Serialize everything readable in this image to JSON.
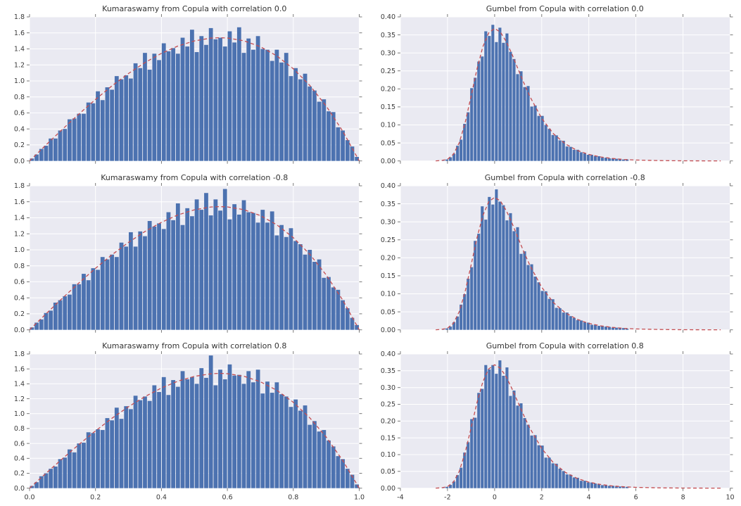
{
  "figure": {
    "bg": "#ffffff",
    "axes_bg": "#eaeaf2",
    "grid_color": "#ffffff",
    "bar_color": "#4c72b0",
    "curve_color": "#c44e52",
    "text_color": "#3a3a3a",
    "tick_color": "#6a6a6a"
  },
  "curves": {
    "kumaraswamy": [
      [
        0,
        0
      ],
      [
        0.05,
        0.2
      ],
      [
        0.1,
        0.396
      ],
      [
        0.15,
        0.587
      ],
      [
        0.2,
        0.768
      ],
      [
        0.25,
        0.938
      ],
      [
        0.3,
        1.092
      ],
      [
        0.35,
        1.229
      ],
      [
        0.4,
        1.344
      ],
      [
        0.45,
        1.436
      ],
      [
        0.5,
        1.5
      ],
      [
        0.55,
        1.535
      ],
      [
        0.577,
        1.54
      ],
      [
        0.6,
        1.536
      ],
      [
        0.65,
        1.502
      ],
      [
        0.7,
        1.428
      ],
      [
        0.75,
        1.313
      ],
      [
        0.8,
        1.152
      ],
      [
        0.85,
        0.944
      ],
      [
        0.9,
        0.684
      ],
      [
        0.95,
        0.371
      ],
      [
        1,
        0
      ]
    ],
    "gumbel": [
      [
        -2.5,
        0.0002
      ],
      [
        -2.25,
        0.0013
      ],
      [
        -2,
        0.0046
      ],
      [
        -1.75,
        0.0182
      ],
      [
        -1.5,
        0.0507
      ],
      [
        -1.25,
        0.1064
      ],
      [
        -1,
        0.1794
      ],
      [
        -0.75,
        0.2549
      ],
      [
        -0.5,
        0.317
      ],
      [
        -0.25,
        0.3556
      ],
      [
        0,
        0.3679
      ],
      [
        0.25,
        0.3575
      ],
      [
        0.5,
        0.3307
      ],
      [
        0.75,
        0.2945
      ],
      [
        1,
        0.2546
      ],
      [
        1.25,
        0.2154
      ],
      [
        1.5,
        0.1785
      ],
      [
        2,
        0.1182
      ],
      [
        2.5,
        0.0756
      ],
      [
        3,
        0.0474
      ],
      [
        3.5,
        0.0293
      ],
      [
        4,
        0.018
      ],
      [
        4.5,
        0.011
      ],
      [
        5,
        0.0067
      ],
      [
        5.5,
        0.0041
      ],
      [
        6,
        0.0025
      ],
      [
        7,
        0.0009
      ],
      [
        8,
        0.0003
      ],
      [
        9,
        0.0001
      ],
      [
        9.6,
        0.0001
      ]
    ]
  },
  "chart_data": [
    {
      "type": "bar",
      "title": "Kumaraswamy from Copula with correlation 0.0",
      "xlim": [
        0.0,
        1.0
      ],
      "ylim": [
        0.0,
        1.8
      ],
      "xticks": [
        0.0,
        0.2,
        0.4,
        0.6,
        0.8,
        1.0
      ],
      "yticks": [
        0.0,
        0.2,
        0.4,
        0.6,
        0.8,
        1.0,
        1.2,
        1.4,
        1.6,
        1.8
      ],
      "ytick_labels": [
        "0.0",
        "0.2",
        "0.4",
        "0.6",
        "0.8",
        "1.0",
        "1.2",
        "1.4",
        "1.6",
        "1.8"
      ],
      "show_x_labels": false,
      "bins": {
        "start": 0.0,
        "width": 0.0142857
      },
      "heights": [
        0.03,
        0.08,
        0.15,
        0.19,
        0.28,
        0.28,
        0.38,
        0.4,
        0.52,
        0.53,
        0.59,
        0.59,
        0.73,
        0.72,
        0.87,
        0.76,
        0.92,
        0.89,
        1.06,
        1.02,
        1.07,
        1.03,
        1.22,
        1.16,
        1.35,
        1.14,
        1.34,
        1.26,
        1.47,
        1.37,
        1.41,
        1.34,
        1.54,
        1.43,
        1.64,
        1.36,
        1.56,
        1.45,
        1.66,
        1.52,
        1.54,
        1.43,
        1.62,
        1.48,
        1.67,
        1.35,
        1.53,
        1.39,
        1.56,
        1.4,
        1.39,
        1.25,
        1.39,
        1.23,
        1.35,
        1.06,
        1.16,
        1.02,
        1.09,
        0.93,
        0.88,
        0.74,
        0.77,
        0.62,
        0.61,
        0.42,
        0.38,
        0.26,
        0.18,
        0.05
      ],
      "curve": "kumaraswamy"
    },
    {
      "type": "bar",
      "title": "Gumbel from Copula with correlation 0.0",
      "xlim": [
        -4,
        10
      ],
      "ylim": [
        0.0,
        0.4
      ],
      "xticks": [
        -4,
        -2,
        0,
        2,
        4,
        6,
        8,
        10
      ],
      "yticks": [
        0.0,
        0.05,
        0.1,
        0.15,
        0.2,
        0.25,
        0.3,
        0.35,
        0.4
      ],
      "ytick_labels": [
        "0.00",
        "0.05",
        "0.10",
        "0.15",
        "0.20",
        "0.25",
        "0.30",
        "0.35",
        "0.40"
      ],
      "show_x_labels": false,
      "bins": {
        "start": -2.25,
        "width": 0.15
      },
      "heights": [
        0.001,
        0.004,
        0.01,
        0.02,
        0.042,
        0.059,
        0.103,
        0.135,
        0.202,
        0.231,
        0.276,
        0.29,
        0.36,
        0.347,
        0.378,
        0.33,
        0.37,
        0.328,
        0.354,
        0.303,
        0.283,
        0.241,
        0.249,
        0.205,
        0.208,
        0.151,
        0.154,
        0.125,
        0.125,
        0.1,
        0.089,
        0.072,
        0.071,
        0.057,
        0.056,
        0.04,
        0.039,
        0.031,
        0.031,
        0.024,
        0.021,
        0.017,
        0.017,
        0.013,
        0.013,
        0.009,
        0.009,
        0.007,
        0.007,
        0.006,
        0.005,
        0.004,
        0.004
      ],
      "curve": "gumbel"
    },
    {
      "type": "bar",
      "title": "Kumaraswamy from Copula with correlation -0.8",
      "xlim": [
        0.0,
        1.0
      ],
      "ylim": [
        0.0,
        1.8
      ],
      "xticks": [
        0.0,
        0.2,
        0.4,
        0.6,
        0.8,
        1.0
      ],
      "yticks": [
        0.0,
        0.2,
        0.4,
        0.6,
        0.8,
        1.0,
        1.2,
        1.4,
        1.6,
        1.8
      ],
      "ytick_labels": [
        "0.0",
        "0.2",
        "0.4",
        "0.6",
        "0.8",
        "1.0",
        "1.2",
        "1.4",
        "1.6",
        "1.8"
      ],
      "show_x_labels": false,
      "bins": {
        "start": 0.0,
        "width": 0.0142857
      },
      "heights": [
        0.03,
        0.09,
        0.13,
        0.21,
        0.24,
        0.34,
        0.37,
        0.42,
        0.44,
        0.57,
        0.57,
        0.7,
        0.62,
        0.77,
        0.75,
        0.91,
        0.88,
        0.94,
        0.91,
        1.09,
        1.04,
        1.22,
        1.04,
        1.23,
        1.17,
        1.36,
        1.29,
        1.33,
        1.26,
        1.47,
        1.37,
        1.58,
        1.31,
        1.52,
        1.42,
        1.63,
        1.5,
        1.71,
        1.43,
        1.63,
        1.49,
        1.76,
        1.38,
        1.57,
        1.44,
        1.62,
        1.47,
        1.46,
        1.34,
        1.5,
        1.34,
        1.48,
        1.18,
        1.31,
        1.16,
        1.27,
        1.11,
        1.07,
        0.94,
        1.0,
        0.85,
        0.88,
        0.65,
        0.66,
        0.53,
        0.5,
        0.37,
        0.27,
        0.15,
        0.06
      ],
      "curve": "kumaraswamy"
    },
    {
      "type": "bar",
      "title": "Gumbel from Copula with correlation -0.8",
      "xlim": [
        -4,
        10
      ],
      "ylim": [
        0.0,
        0.4
      ],
      "xticks": [
        -4,
        -2,
        0,
        2,
        4,
        6,
        8,
        10
      ],
      "yticks": [
        0.0,
        0.05,
        0.1,
        0.15,
        0.2,
        0.25,
        0.3,
        0.35,
        0.4
      ],
      "ytick_labels": [
        "0.00",
        "0.05",
        "0.10",
        "0.15",
        "0.20",
        "0.25",
        "0.30",
        "0.35",
        "0.40"
      ],
      "show_x_labels": false,
      "bins": {
        "start": -2.25,
        "width": 0.15
      },
      "heights": [
        0.001,
        0.004,
        0.009,
        0.021,
        0.037,
        0.07,
        0.099,
        0.142,
        0.174,
        0.247,
        0.267,
        0.343,
        0.306,
        0.369,
        0.348,
        0.39,
        0.356,
        0.346,
        0.304,
        0.324,
        0.274,
        0.285,
        0.211,
        0.218,
        0.18,
        0.182,
        0.148,
        0.132,
        0.108,
        0.107,
        0.086,
        0.085,
        0.061,
        0.06,
        0.048,
        0.048,
        0.038,
        0.033,
        0.027,
        0.026,
        0.021,
        0.02,
        0.014,
        0.014,
        0.011,
        0.011,
        0.009,
        0.008,
        0.006,
        0.006,
        0.005,
        0.005,
        0.003
      ],
      "curve": "gumbel"
    },
    {
      "type": "bar",
      "title": "Kumaraswamy from Copula with correlation 0.8",
      "xlim": [
        0.0,
        1.0
      ],
      "ylim": [
        0.0,
        1.8
      ],
      "xticks": [
        0.0,
        0.2,
        0.4,
        0.6,
        0.8,
        1.0
      ],
      "xtick_labels": [
        "0.0",
        "0.2",
        "0.4",
        "0.6",
        "0.8",
        "1.0"
      ],
      "yticks": [
        0.0,
        0.2,
        0.4,
        0.6,
        0.8,
        1.0,
        1.2,
        1.4,
        1.6,
        1.8
      ],
      "ytick_labels": [
        "0.0",
        "0.2",
        "0.4",
        "0.6",
        "0.8",
        "1.0",
        "1.2",
        "1.4",
        "1.6",
        "1.8"
      ],
      "show_x_labels": true,
      "bins": {
        "start": 0.0,
        "width": 0.0142857
      },
      "heights": [
        0.03,
        0.08,
        0.16,
        0.2,
        0.26,
        0.29,
        0.39,
        0.41,
        0.52,
        0.48,
        0.6,
        0.61,
        0.75,
        0.74,
        0.79,
        0.78,
        0.94,
        0.91,
        1.08,
        0.93,
        1.1,
        1.06,
        1.24,
        1.18,
        1.23,
        1.17,
        1.38,
        1.29,
        1.49,
        1.25,
        1.45,
        1.36,
        1.57,
        1.46,
        1.49,
        1.4,
        1.61,
        1.48,
        1.78,
        1.38,
        1.59,
        1.46,
        1.66,
        1.51,
        1.52,
        1.4,
        1.57,
        1.42,
        1.59,
        1.27,
        1.43,
        1.28,
        1.42,
        1.26,
        1.23,
        1.09,
        1.19,
        1.04,
        1.11,
        0.85,
        0.9,
        0.76,
        0.78,
        0.64,
        0.56,
        0.43,
        0.39,
        0.26,
        0.18,
        0.05
      ],
      "curve": "kumaraswamy"
    },
    {
      "type": "bar",
      "title": "Gumbel from Copula with correlation 0.8",
      "xlim": [
        -4,
        10
      ],
      "ylim": [
        0.0,
        0.4
      ],
      "xticks": [
        -4,
        -2,
        0,
        2,
        4,
        6,
        8,
        10
      ],
      "xtick_labels": [
        "-4",
        "-2",
        "0",
        "2",
        "4",
        "6",
        "8",
        "10"
      ],
      "yticks": [
        0.0,
        0.05,
        0.1,
        0.15,
        0.2,
        0.25,
        0.3,
        0.35,
        0.4
      ],
      "ytick_labels": [
        "0.00",
        "0.05",
        "0.10",
        "0.15",
        "0.20",
        "0.25",
        "0.30",
        "0.35",
        "0.40"
      ],
      "show_x_labels": true,
      "bins": {
        "start": -2.25,
        "width": 0.15
      },
      "heights": [
        0.001,
        0.004,
        0.01,
        0.02,
        0.039,
        0.061,
        0.106,
        0.137,
        0.206,
        0.21,
        0.284,
        0.296,
        0.367,
        0.354,
        0.367,
        0.341,
        0.381,
        0.335,
        0.36,
        0.275,
        0.291,
        0.246,
        0.253,
        0.209,
        0.189,
        0.157,
        0.158,
        0.128,
        0.127,
        0.091,
        0.091,
        0.074,
        0.073,
        0.058,
        0.051,
        0.041,
        0.04,
        0.032,
        0.031,
        0.022,
        0.022,
        0.017,
        0.017,
        0.014,
        0.012,
        0.009,
        0.009,
        0.007,
        0.007,
        0.005,
        0.005,
        0.004,
        0.004
      ],
      "curve": "gumbel"
    }
  ]
}
